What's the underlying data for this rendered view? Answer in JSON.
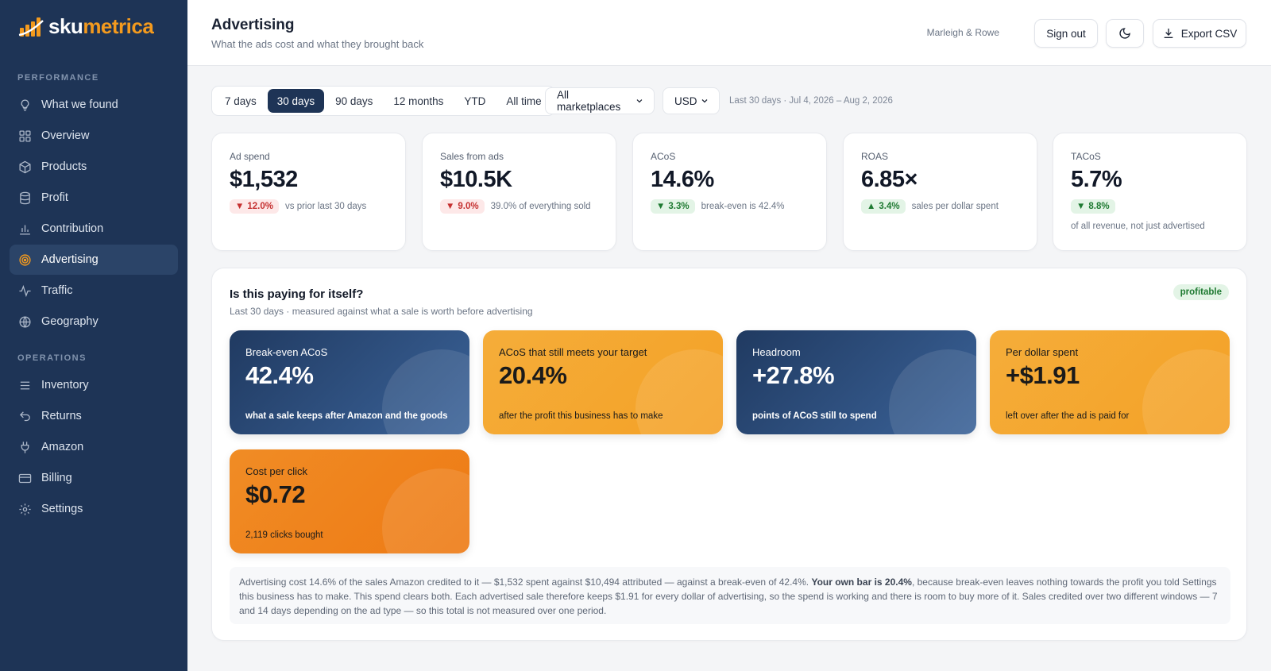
{
  "brand": {
    "name_part1": "sku",
    "name_part2": "metrica"
  },
  "sidebar": {
    "section_performance": "PERFORMANCE",
    "section_operations": "OPERATIONS",
    "items": [
      {
        "label": "What we found",
        "icon": "lightbulb-icon"
      },
      {
        "label": "Overview",
        "icon": "grid-icon"
      },
      {
        "label": "Products",
        "icon": "box-icon"
      },
      {
        "label": "Profit",
        "icon": "database-icon"
      },
      {
        "label": "Contribution",
        "icon": "bar-chart-icon"
      },
      {
        "label": "Advertising",
        "icon": "target-icon",
        "active": true
      },
      {
        "label": "Traffic",
        "icon": "activity-icon"
      },
      {
        "label": "Geography",
        "icon": "globe-icon"
      },
      {
        "label": "Inventory",
        "icon": "list-icon"
      },
      {
        "label": "Returns",
        "icon": "return-icon"
      },
      {
        "label": "Amazon",
        "icon": "plug-icon"
      },
      {
        "label": "Billing",
        "icon": "credit-card-icon"
      },
      {
        "label": "Settings",
        "icon": "gear-icon"
      }
    ]
  },
  "header": {
    "title": "Advertising",
    "subtitle": "What the ads cost and what they brought back",
    "org": "Marleigh & Rowe",
    "sign_out": "Sign out",
    "export": "Export CSV"
  },
  "filters": {
    "ranges": [
      "7 days",
      "30 days",
      "90 days",
      "12 months",
      "YTD",
      "All time"
    ],
    "active_range": "30 days",
    "marketplace": "All marketplaces",
    "currency": "USD",
    "range_note": "Last 30 days · Jul 4, 2026 – Aug 2, 2026"
  },
  "kpis": [
    {
      "label": "Ad spend",
      "value": "$1,532",
      "delta": "12.0%",
      "direction": "down",
      "tone": "bad",
      "note": "vs prior last 30 days"
    },
    {
      "label": "Sales from ads",
      "value": "$10.5K",
      "delta": "9.0%",
      "direction": "down",
      "tone": "bad",
      "note": "39.0% of everything sold"
    },
    {
      "label": "ACoS",
      "value": "14.6%",
      "delta": "3.3%",
      "direction": "down",
      "tone": "good",
      "note": "break-even is 42.4%"
    },
    {
      "label": "ROAS",
      "value": "6.85×",
      "delta": "3.4%",
      "direction": "up",
      "tone": "good",
      "note": "sales per dollar spent"
    },
    {
      "label": "TACoS",
      "value": "5.7%",
      "delta": "8.8%",
      "direction": "down",
      "tone": "good",
      "note": "of all revenue, not just advertised"
    }
  ],
  "panel": {
    "title": "Is this paying for itself?",
    "subtitle": "Last 30 days · measured against what a sale is worth before advertising",
    "badge": "profitable",
    "tiles": [
      {
        "label": "Break-even ACoS",
        "value": "42.4%",
        "note": "what a sale keeps after Amazon and the goods",
        "style": "blue"
      },
      {
        "label": "ACoS that still meets your target",
        "value": "20.4%",
        "note": "after the profit this business has to make",
        "style": "gold"
      },
      {
        "label": "Headroom",
        "value": "+27.8%",
        "note": "points of ACoS still to spend",
        "style": "blue"
      },
      {
        "label": "Per dollar spent",
        "value": "+$1.91",
        "note": "left over after the ad is paid for",
        "style": "gold"
      },
      {
        "label": "Cost per click",
        "value": "$0.72",
        "note": "2,119 clicks bought",
        "style": "orange"
      }
    ],
    "explain_a": "Advertising cost 14.6% of the sales Amazon credited to it — $1,532 spent against $10,494 attributed — against a break-even of 42.4%. ",
    "explain_bold": "Your own bar is 20.4%",
    "explain_b": ", because break-even leaves nothing towards the profit you told Settings this business has to make. This spend clears both. Each advertised sale therefore keeps $1.91 for every dollar of advertising, so the spend is working and there is room to buy more of it. Sales credited over two different windows — 7 and 14 days depending on the ad type — so this total is not measured over one period."
  },
  "colors": {
    "sidebar": "#1e3456",
    "accent": "#f39a1e",
    "good": "#1f7a32",
    "bad": "#c53030"
  }
}
